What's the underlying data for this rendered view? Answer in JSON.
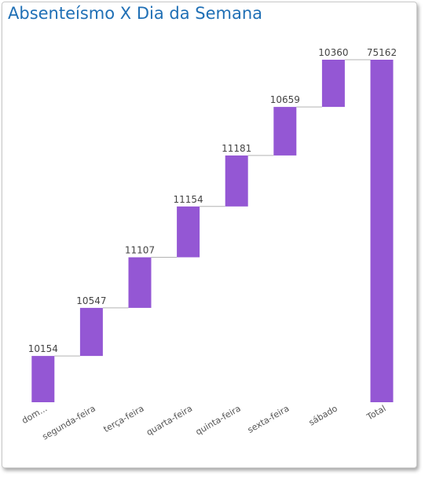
{
  "chart_data": {
    "type": "waterfall",
    "title": "Absenteísmo X Dia da Semana",
    "categories": [
      "dom...",
      "segunda-feira",
      "terça-feira",
      "quarta-feira",
      "quinta-feira",
      "sexta-feira",
      "sábado",
      "Total"
    ],
    "values": [
      10154,
      10547,
      11107,
      11154,
      11181,
      10659,
      10360,
      75162
    ],
    "is_total": [
      false,
      false,
      false,
      false,
      false,
      false,
      false,
      true
    ],
    "ylim": [
      0,
      75162
    ],
    "bar_color": "#9457d4",
    "connector_color": "#b3b3b3",
    "grid": false,
    "legend": "none"
  }
}
